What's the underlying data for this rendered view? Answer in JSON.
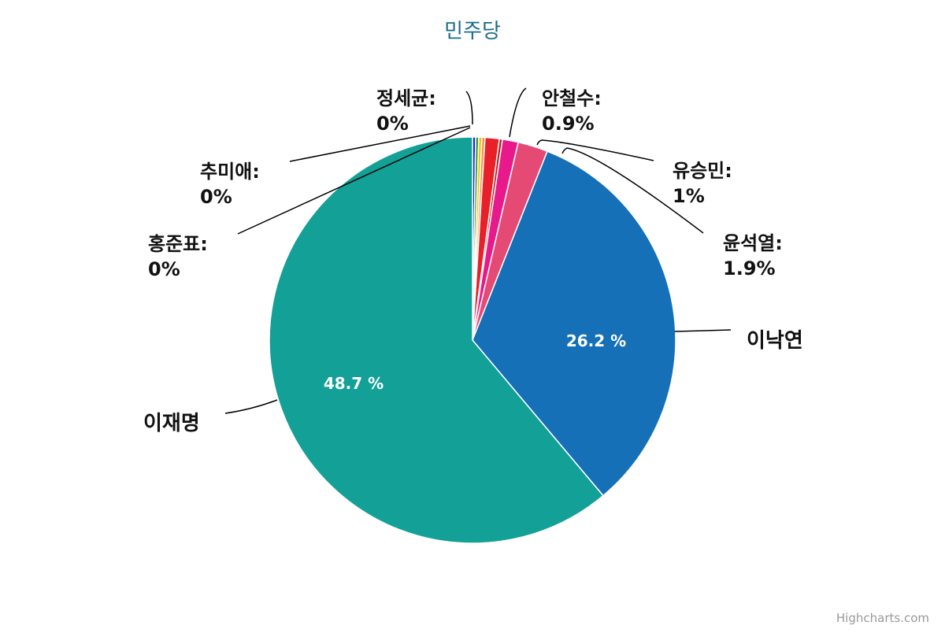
{
  "chart_data": {
    "type": "pie",
    "title": "민주당",
    "credits": "Highcharts.com",
    "slices": [
      {
        "name": "정세균",
        "value": 0,
        "color": "#1a1aff"
      },
      {
        "name": "",
        "value": 0,
        "color": "#2f9e2f"
      },
      {
        "name": "",
        "value": 0,
        "color": "#f2c200"
      },
      {
        "name": "",
        "value": 0,
        "color": "#ff8c42"
      },
      {
        "name": "안철수",
        "value": 0.9,
        "color": "#e8202a"
      },
      {
        "name": "",
        "value": 0,
        "color": "#b81c1c"
      },
      {
        "name": "유승민",
        "value": 1,
        "color": "#e8198b"
      },
      {
        "name": "윤석열",
        "value": 1.9,
        "color": "#e44a74"
      },
      {
        "name": "이낙연",
        "value": 26.2,
        "color": "#1570b8"
      },
      {
        "name": "이재명",
        "value": 48.7,
        "color": "#12a097"
      },
      {
        "name": "홍준표",
        "value": 0,
        "color": "#12a097"
      },
      {
        "name": "추미애",
        "value": 0,
        "color": "#12a097"
      }
    ],
    "callouts": [
      {
        "name": "정세균:",
        "value": "0%"
      },
      {
        "name": "안철수:",
        "value": "0.9%"
      },
      {
        "name": "유승민:",
        "value": "1%"
      },
      {
        "name": "윤석열:",
        "value": "1.9%"
      },
      {
        "name": "추미애:",
        "value": "0%"
      },
      {
        "name": "홍준표:",
        "value": "0%"
      }
    ],
    "inside_labels": [
      {
        "series": "이낙연",
        "text": "26.2 %"
      },
      {
        "series": "이재명",
        "text": "48.7 %"
      }
    ],
    "outside_labels": [
      "이낙연",
      "이재명"
    ]
  }
}
